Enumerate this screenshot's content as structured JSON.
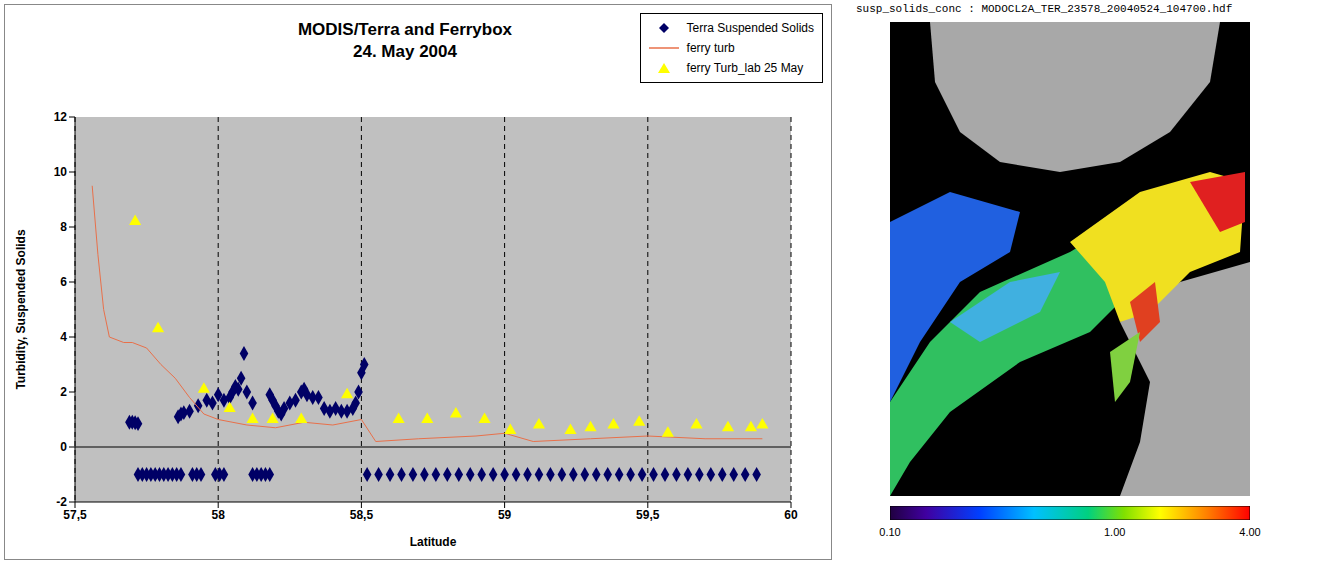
{
  "chart_data": [
    {
      "type": "scatter",
      "title": "MODIS/Terra and Ferrybox",
      "subtitle": "24. May 2004",
      "x_label": "Latitude",
      "y_label": "Turbidity, Suspended Solids",
      "xlim": [
        57.5,
        60
      ],
      "xticks": [
        {
          "value": 57.5,
          "label": "57,5"
        },
        58,
        {
          "value": 58.5,
          "label": "58,5"
        },
        59,
        {
          "value": 59.5,
          "label": "59,5"
        },
        60
      ],
      "ylim": [
        -2,
        12
      ],
      "yticks": [
        -2,
        0,
        2,
        4,
        6,
        8,
        10,
        12
      ],
      "grid": true,
      "legend": "top-right",
      "series": [
        {
          "name": "Terra Suspended Solids",
          "type": "scatter",
          "color": "#000066",
          "marker": "diamond",
          "x": [
            57.69,
            57.7,
            57.71,
            57.72,
            57.86,
            57.87,
            57.88,
            57.9,
            57.93,
            57.96,
            57.98,
            58.0,
            58.02,
            58.04,
            58.05,
            58.06,
            58.07,
            58.08,
            58.09,
            58.1,
            58.12,
            58.18,
            58.19,
            58.2,
            58.21,
            58.22,
            58.23,
            58.25,
            58.27,
            58.29,
            58.3,
            58.31,
            58.33,
            58.35,
            58.37,
            58.39,
            58.41,
            58.43,
            58.45,
            58.47,
            58.48,
            58.49,
            58.5,
            58.51,
            57.72,
            57.735,
            57.75,
            57.765,
            57.78,
            57.795,
            57.81,
            57.825,
            57.84,
            57.855,
            57.87,
            57.91,
            57.925,
            57.94,
            57.99,
            58.005,
            58.02,
            58.12,
            58.135,
            58.15,
            58.165,
            58.18,
            58.52,
            58.56,
            58.6,
            58.64,
            58.68,
            58.72,
            58.76,
            58.8,
            58.84,
            58.88,
            58.92,
            58.96,
            59.0,
            59.04,
            59.08,
            59.12,
            59.16,
            59.2,
            59.24,
            59.28,
            59.32,
            59.36,
            59.4,
            59.44,
            59.48,
            59.52,
            59.56,
            59.6,
            59.64,
            59.68,
            59.72,
            59.76,
            59.8,
            59.84,
            59.88
          ],
          "values": [
            0.9,
            0.9,
            0.88,
            0.85,
            1.1,
            1.2,
            1.25,
            1.3,
            1.5,
            1.7,
            1.6,
            1.9,
            1.7,
            1.8,
            2.0,
            2.2,
            2.1,
            2.5,
            3.4,
            2.0,
            1.6,
            1.9,
            1.7,
            1.5,
            1.3,
            1.2,
            1.4,
            1.6,
            1.7,
            2.0,
            2.1,
            1.9,
            1.8,
            1.8,
            1.4,
            1.3,
            1.4,
            1.3,
            1.3,
            1.4,
            1.6,
            2.0,
            2.7,
            3.0,
            -1,
            -1,
            -1,
            -1,
            -1,
            -1,
            -1,
            -1,
            -1,
            -1,
            -1,
            -1,
            -1,
            -1,
            -1,
            -1,
            -1,
            -1,
            -1,
            -1,
            -1,
            -1,
            -1,
            -1,
            -1,
            -1,
            -1,
            -1,
            -1,
            -1,
            -1,
            -1,
            -1,
            -1,
            -1,
            -1,
            -1,
            -1,
            -1,
            -1,
            -1,
            -1,
            -1,
            -1,
            -1,
            -1,
            -1,
            -1,
            -1,
            -1,
            -1,
            -1,
            -1,
            -1,
            -1,
            -1,
            -1
          ]
        },
        {
          "name": "ferry turb",
          "type": "line",
          "color": "#e8704a",
          "marker": "none",
          "line_style": "solid",
          "x": [
            57.56,
            57.58,
            57.6,
            57.62,
            57.67,
            57.7,
            57.75,
            57.8,
            57.85,
            57.9,
            57.95,
            58.0,
            58.1,
            58.2,
            58.3,
            58.4,
            58.45,
            58.5,
            58.55,
            58.7,
            58.9,
            59.0,
            59.1,
            59.3,
            59.5,
            59.7,
            59.9
          ],
          "values": [
            9.5,
            7.0,
            5.0,
            4.0,
            3.8,
            3.8,
            3.6,
            3.0,
            2.5,
            1.8,
            1.2,
            1.0,
            0.8,
            0.7,
            0.9,
            0.8,
            0.9,
            1.0,
            0.2,
            0.3,
            0.4,
            0.5,
            0.2,
            0.3,
            0.4,
            0.3,
            0.3
          ]
        },
        {
          "name": "ferry Turb_lab 25 May",
          "type": "scatter",
          "color": "#ffff00",
          "marker": "triangle",
          "x": [
            57.71,
            57.79,
            57.95,
            58.04,
            58.12,
            58.19,
            58.29,
            58.45,
            58.63,
            58.73,
            58.83,
            58.93,
            59.02,
            59.12,
            59.23,
            59.3,
            59.38,
            59.47,
            59.57,
            59.67,
            59.78,
            59.86,
            59.9
          ],
          "values": [
            8.2,
            4.3,
            2.1,
            1.4,
            1.0,
            1.0,
            1.0,
            1.9,
            1.0,
            1.0,
            1.2,
            1.0,
            0.6,
            0.8,
            0.6,
            0.7,
            0.8,
            0.9,
            0.5,
            0.8,
            0.7,
            0.7,
            0.8
          ]
        }
      ]
    },
    {
      "type": "map",
      "title": "susp_solids_conc : MODOCL2A_TER_23578_20040524_104700.hdf",
      "log": true,
      "colorbar": {
        "range": [
          0.1,
          4
        ],
        "ticks": [
          {
            "value": 0.1,
            "label": "0.10"
          },
          {
            "value": 1,
            "label": "1.00"
          },
          {
            "value": 4,
            "label": "4.00"
          }
        ]
      }
    }
  ]
}
